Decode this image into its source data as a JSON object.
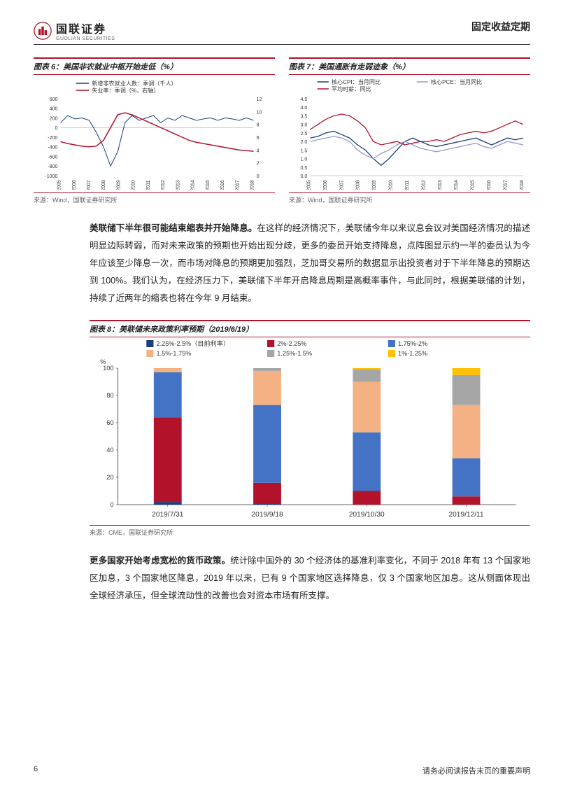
{
  "header": {
    "logo_cn": "国联证券",
    "logo_en": "GUOLIAN SECURITIES",
    "title": "固定收益定期"
  },
  "chart6": {
    "title_prefix": "图表 6：",
    "title": "美国非农就业中枢开始走低（%）",
    "source": "来源：Wind，国联证券研究所",
    "legend": [
      {
        "label": "新增非农就业人数：季调（千人）",
        "color": "#1f3d7a"
      },
      {
        "label": "失业率：季调（%，右轴）",
        "color": "#b3122b"
      }
    ],
    "x_labels": [
      "2005",
      "2006",
      "2007",
      "2008",
      "2009",
      "2010",
      "2011",
      "2012",
      "2013",
      "2014",
      "2015",
      "2016",
      "2017",
      "2018"
    ],
    "y_left": {
      "min": -1000,
      "max": 600,
      "ticks": [
        -1000,
        -800,
        -600,
        -400,
        -200,
        0,
        200,
        400,
        600
      ]
    },
    "y_right": {
      "min": 0,
      "max": 12,
      "ticks": [
        0,
        2,
        4,
        6,
        8,
        10,
        12
      ]
    },
    "series1_color": "#1f3d7a",
    "series2_color": "#b3122b",
    "series1": [
      100,
      250,
      180,
      200,
      150,
      -100,
      -400,
      -800,
      -500,
      100,
      250,
      150,
      200,
      250,
      100,
      200,
      150,
      250,
      200,
      150,
      180,
      200,
      150,
      200,
      180,
      150,
      200,
      150
    ],
    "series2": [
      5.3,
      5.0,
      4.8,
      4.6,
      4.5,
      4.6,
      5.5,
      7.5,
      9.5,
      9.8,
      9.5,
      9.0,
      8.5,
      8.0,
      7.5,
      7.0,
      6.5,
      6.0,
      5.5,
      5.2,
      5.0,
      4.8,
      4.6,
      4.4,
      4.2,
      4.0,
      3.9,
      3.8
    ]
  },
  "chart7": {
    "title_prefix": "图表 7：",
    "title": "美国通胀有走弱迹象（%）",
    "source": "来源：Wind，国联证券研究所",
    "legend": [
      {
        "label": "核心CPI：当月同比",
        "color": "#1f3d7a"
      },
      {
        "label": "核心PCE：当月同比",
        "color": "#9999cc"
      },
      {
        "label": "平均时薪：同比",
        "color": "#b3122b"
      }
    ],
    "x_labels": [
      "2005",
      "2006",
      "2007",
      "2008",
      "2009",
      "2010",
      "2011",
      "2012",
      "2013",
      "2014",
      "2015",
      "2016",
      "2017",
      "2018"
    ],
    "y": {
      "min": 0.0,
      "max": 4.5,
      "ticks": [
        0.0,
        0.5,
        1.0,
        1.5,
        2.0,
        2.5,
        3.0,
        3.5,
        4.0,
        4.5
      ]
    },
    "series1_color": "#1f3d7a",
    "series2_color": "#9999cc",
    "series3_color": "#b3122b",
    "series1": [
      2.2,
      2.3,
      2.5,
      2.6,
      2.4,
      2.2,
      1.8,
      1.5,
      1.0,
      0.6,
      1.0,
      1.5,
      2.0,
      2.2,
      2.0,
      1.8,
      1.7,
      1.8,
      1.9,
      2.0,
      2.1,
      2.2,
      2.0,
      1.8,
      2.0,
      2.2,
      2.1,
      2.2
    ],
    "series2": [
      2.0,
      2.1,
      2.2,
      2.3,
      2.2,
      2.0,
      1.5,
      1.2,
      1.0,
      1.3,
      1.5,
      1.8,
      2.0,
      1.8,
      1.6,
      1.5,
      1.4,
      1.5,
      1.6,
      1.7,
      1.8,
      1.9,
      1.7,
      1.6,
      1.8,
      2.0,
      1.9,
      1.8
    ],
    "series3": [
      2.7,
      3.0,
      3.3,
      3.5,
      3.6,
      3.5,
      3.2,
      2.8,
      2.0,
      1.8,
      1.9,
      2.0,
      1.8,
      1.9,
      2.0,
      2.0,
      2.1,
      2.0,
      2.2,
      2.4,
      2.5,
      2.6,
      2.5,
      2.6,
      2.8,
      3.0,
      3.2,
      3.0
    ]
  },
  "para1": {
    "bold": "美联储下半年很可能结束缩表并开始降息。",
    "text": "在这样的经济情况下，美联储今年以来议息会议对美国经济情况的描述明显边际转弱，而对未来政策的预期也开始出现分歧，更多的委员开始支持降息，点阵图显示约一半的委员认为今年应该至少降息一次，而市场对降息的预期更加强烈，芝加哥交易所的数据显示出投资者对于下半年降息的预期达到 100%。我们认为，在经济压力下，美联储下半年开启降息周期是高概率事件，与此同时，根据美联储的计划，持续了近两年的缩表也将在今年 9 月结束。"
  },
  "chart8": {
    "title_prefix": "图表 8：",
    "title": "美联储未来政策利率预期（2019/6/19）",
    "source": "来源：CME，国联证券研究所",
    "legend": [
      {
        "label": "2.25%-2.5%（目前利率）",
        "color": "#1f3d7a"
      },
      {
        "label": "2%-2.25%",
        "color": "#b3122b"
      },
      {
        "label": "1.75%-2%",
        "color": "#4472c4"
      },
      {
        "label": "1.5%-1.75%",
        "color": "#f4b183"
      },
      {
        "label": "1.25%-1.5%",
        "color": "#a6a6a6"
      },
      {
        "label": "1%-1.25%",
        "color": "#ffc000"
      }
    ],
    "categories": [
      "2019/7/31",
      "2019/9/18",
      "2019/10/30",
      "2019/12/11"
    ],
    "y": {
      "min": 0,
      "max": 100,
      "ticks": [
        0,
        20,
        40,
        60,
        80,
        100
      ],
      "label": "%"
    },
    "stacks": [
      {
        "225_25": 2,
        "2_225": 62,
        "175_2": 33,
        "15_175": 3,
        "125_15": 0,
        "1_125": 0
      },
      {
        "225_25": 1,
        "2_225": 15,
        "175_2": 57,
        "15_175": 25,
        "125_15": 2,
        "1_125": 0
      },
      {
        "225_25": 0,
        "2_225": 10,
        "175_2": 43,
        "15_175": 37,
        "125_15": 9,
        "1_125": 1
      },
      {
        "225_25": 0,
        "2_225": 6,
        "175_2": 28,
        "15_175": 39,
        "125_15": 22,
        "1_125": 5
      }
    ],
    "bar_width": 0.28
  },
  "para2": {
    "bold": "更多国家开始考虑宽松的货币政策。",
    "text": "统计除中国外的 30 个经济体的基准利率变化，不同于 2018 年有 13 个国家地区加息，3 个国家地区降息，2019 年以来，已有 9 个国家地区选择降息，仅 3 个国家地区加息。这从侧面体现出全球经济承压，但全球流动性的改善也会对资本市场有所支撑。"
  },
  "footer": {
    "page_num": "6",
    "disclaimer": "请务必阅读报告末页的重要声明"
  }
}
